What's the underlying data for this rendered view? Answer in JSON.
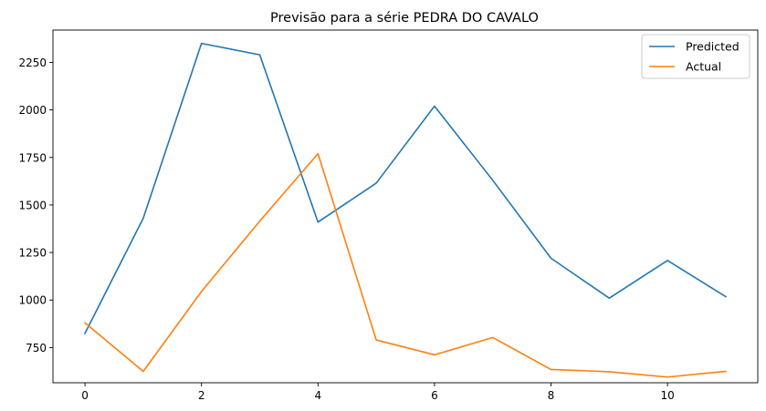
{
  "chart_data": {
    "type": "line",
    "title": "Previsão para a série PEDRA DO CAVALO",
    "xlabel": "",
    "ylabel": "",
    "x": [
      0,
      1,
      2,
      3,
      4,
      5,
      6,
      7,
      8,
      9,
      10,
      11
    ],
    "xlim": [
      -0.55,
      11.55
    ],
    "ylim": [
      565,
      2420
    ],
    "xticks": [
      0,
      2,
      4,
      6,
      8,
      10
    ],
    "yticks": [
      750,
      1000,
      1250,
      1500,
      1750,
      2000,
      2250
    ],
    "grid": false,
    "legend_position": "top-right",
    "series": [
      {
        "name": "Predicted",
        "color": "#1f77b4",
        "values": [
          825,
          1430,
          2350,
          2290,
          1410,
          1615,
          2020,
          1630,
          1220,
          1010,
          1208,
          1018
        ]
      },
      {
        "name": "Actual",
        "color": "#ff7f0e",
        "values": [
          880,
          625,
          1045,
          1415,
          1770,
          790,
          712,
          803,
          635,
          623,
          595,
          625
        ]
      }
    ]
  }
}
